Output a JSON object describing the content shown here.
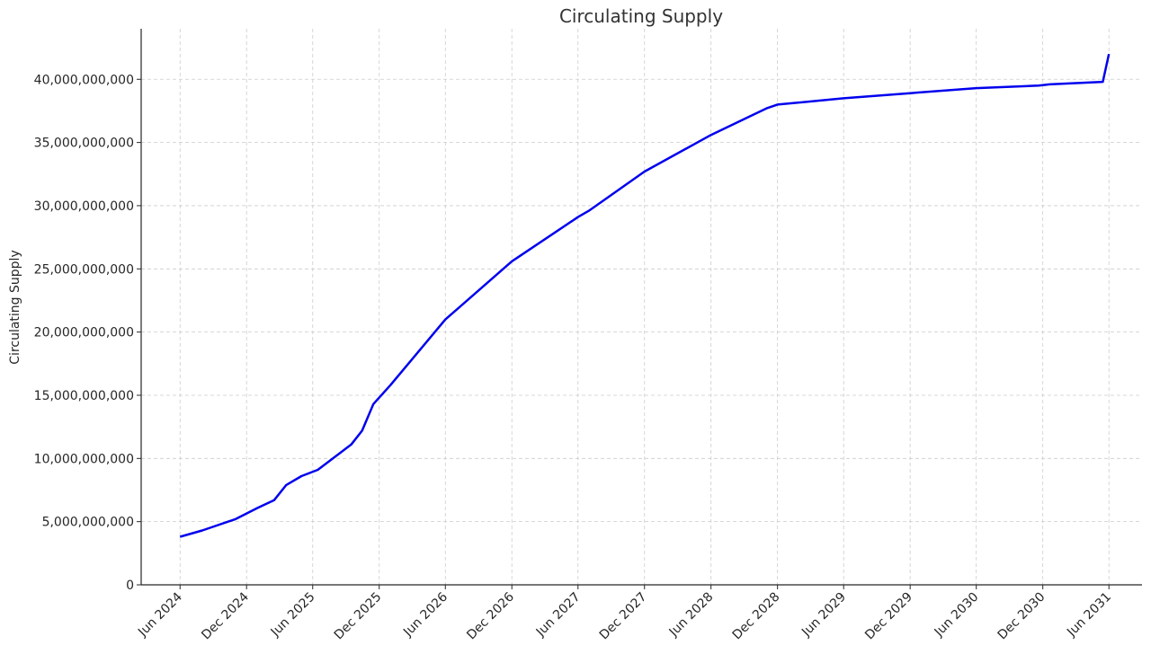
{
  "chart_data": {
    "type": "line",
    "title": "Circulating Supply",
    "xlabel": "",
    "ylabel": "Circulating Supply",
    "xlim": [
      "2024-02-15",
      "2031-08-31"
    ],
    "ylim": [
      0,
      44000000000
    ],
    "x_ticks": [
      {
        "date": "2024-06-01",
        "label": "Jun 2024"
      },
      {
        "date": "2024-12-01",
        "label": "Dec 2024"
      },
      {
        "date": "2025-06-01",
        "label": "Jun 2025"
      },
      {
        "date": "2025-12-01",
        "label": "Dec 2025"
      },
      {
        "date": "2026-06-01",
        "label": "Jun 2026"
      },
      {
        "date": "2026-12-01",
        "label": "Dec 2026"
      },
      {
        "date": "2027-06-01",
        "label": "Jun 2027"
      },
      {
        "date": "2027-12-01",
        "label": "Dec 2027"
      },
      {
        "date": "2028-06-01",
        "label": "Jun 2028"
      },
      {
        "date": "2028-12-01",
        "label": "Dec 2028"
      },
      {
        "date": "2029-06-01",
        "label": "Jun 2029"
      },
      {
        "date": "2029-12-01",
        "label": "Dec 2029"
      },
      {
        "date": "2030-06-01",
        "label": "Jun 2030"
      },
      {
        "date": "2030-12-01",
        "label": "Dec 2030"
      },
      {
        "date": "2031-06-01",
        "label": "Jun 2031"
      }
    ],
    "y_ticks": [
      {
        "value": 0,
        "label": "0"
      },
      {
        "value": 5000000000,
        "label": "5,000,000,000"
      },
      {
        "value": 10000000000,
        "label": "10,000,000,000"
      },
      {
        "value": 15000000000,
        "label": "15,000,000,000"
      },
      {
        "value": 20000000000,
        "label": "20,000,000,000"
      },
      {
        "value": 25000000000,
        "label": "25,000,000,000"
      },
      {
        "value": 30000000000,
        "label": "30,000,000,000"
      },
      {
        "value": 35000000000,
        "label": "35,000,000,000"
      },
      {
        "value": 40000000000,
        "label": "40,000,000,000"
      }
    ],
    "grid": true,
    "legend": "none",
    "series": [
      {
        "color": "#0000ee",
        "points": [
          {
            "x": "2024-06-01",
            "y": 3800000000
          },
          {
            "x": "2024-08-01",
            "y": 4300000000
          },
          {
            "x": "2024-11-01",
            "y": 5200000000
          },
          {
            "x": "2025-01-01",
            "y": 6100000000
          },
          {
            "x": "2025-02-15",
            "y": 6700000000
          },
          {
            "x": "2025-03-20",
            "y": 7900000000
          },
          {
            "x": "2025-05-01",
            "y": 8600000000
          },
          {
            "x": "2025-06-15",
            "y": 9100000000
          },
          {
            "x": "2025-09-15",
            "y": 11100000000
          },
          {
            "x": "2025-10-15",
            "y": 12200000000
          },
          {
            "x": "2025-11-15",
            "y": 14300000000
          },
          {
            "x": "2026-01-01",
            "y": 15800000000
          },
          {
            "x": "2026-06-01",
            "y": 21000000000
          },
          {
            "x": "2026-12-01",
            "y": 25600000000
          },
          {
            "x": "2027-06-01",
            "y": 29100000000
          },
          {
            "x": "2027-07-01",
            "y": 29600000000
          },
          {
            "x": "2027-12-01",
            "y": 32700000000
          },
          {
            "x": "2028-06-01",
            "y": 35600000000
          },
          {
            "x": "2028-11-01",
            "y": 37700000000
          },
          {
            "x": "2028-12-01",
            "y": 38000000000
          },
          {
            "x": "2029-06-01",
            "y": 38500000000
          },
          {
            "x": "2029-12-01",
            "y": 38900000000
          },
          {
            "x": "2030-06-01",
            "y": 39300000000
          },
          {
            "x": "2030-11-20",
            "y": 39500000000
          },
          {
            "x": "2030-12-20",
            "y": 39600000000
          },
          {
            "x": "2031-05-15",
            "y": 39800000000
          },
          {
            "x": "2031-06-01",
            "y": 42000000000
          }
        ]
      }
    ]
  }
}
